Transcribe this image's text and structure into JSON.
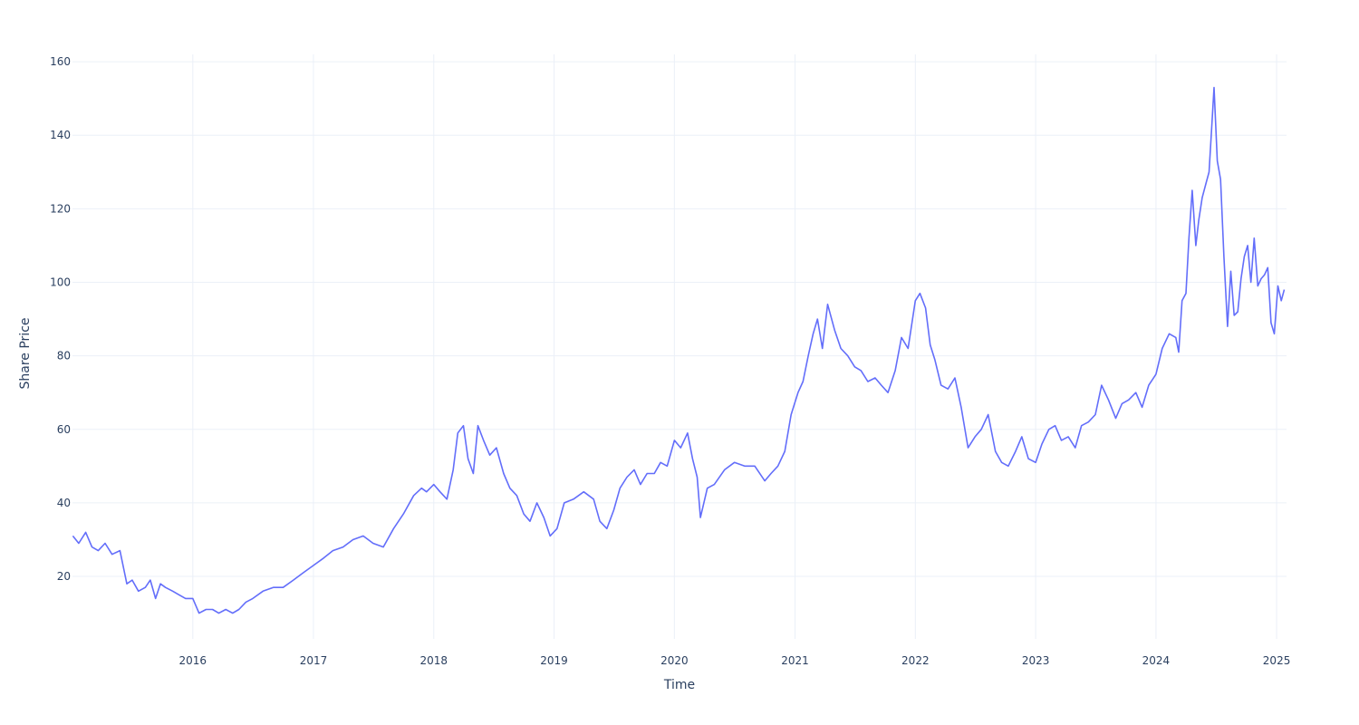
{
  "chart_data": {
    "type": "line",
    "title": "",
    "xlabel": "Time",
    "ylabel": "Share Price",
    "xlim": [
      "2015-01-01",
      "2025-01-31"
    ],
    "ylim": [
      3,
      162
    ],
    "grid": true,
    "line_color": "#636efa",
    "grid_color": "#ebf0f8",
    "text_color": "#2a3f5f",
    "x_ticks": [
      "2016",
      "2017",
      "2018",
      "2019",
      "2020",
      "2021",
      "2022",
      "2023",
      "2024",
      "2025"
    ],
    "y_ticks": [
      "20",
      "40",
      "60",
      "80",
      "100",
      "120",
      "140",
      "160"
    ],
    "series": [
      {
        "x": [
          "2015-01-02",
          "2015-01-20",
          "2015-02-10",
          "2015-03-01",
          "2015-03-20",
          "2015-04-10",
          "2015-05-01",
          "2015-05-25",
          "2015-06-15",
          "2015-07-01",
          "2015-07-20",
          "2015-08-10",
          "2015-08-25",
          "2015-09-10",
          "2015-09-25",
          "2015-10-10",
          "2015-11-01",
          "2015-11-20",
          "2015-12-10",
          "2016-01-01",
          "2016-01-20",
          "2016-02-10",
          "2016-03-01",
          "2016-03-20",
          "2016-04-10",
          "2016-05-01",
          "2016-05-20",
          "2016-06-10",
          "2016-07-01",
          "2016-08-01",
          "2016-09-01",
          "2016-10-01",
          "2016-11-01",
          "2016-12-01",
          "2017-01-01",
          "2017-02-01",
          "2017-03-01",
          "2017-04-01",
          "2017-05-01",
          "2017-06-01",
          "2017-07-01",
          "2017-08-01",
          "2017-09-01",
          "2017-10-01",
          "2017-11-01",
          "2017-11-25",
          "2017-12-10",
          "2018-01-01",
          "2018-01-20",
          "2018-02-10",
          "2018-03-01",
          "2018-03-15",
          "2018-04-01",
          "2018-04-15",
          "2018-05-01",
          "2018-05-15",
          "2018-06-01",
          "2018-06-20",
          "2018-07-10",
          "2018-08-01",
          "2018-08-20",
          "2018-09-10",
          "2018-10-01",
          "2018-10-20",
          "2018-11-10",
          "2018-12-01",
          "2018-12-20",
          "2019-01-10",
          "2019-02-01",
          "2019-03-01",
          "2019-04-01",
          "2019-05-01",
          "2019-05-20",
          "2019-06-10",
          "2019-07-01",
          "2019-07-20",
          "2019-08-10",
          "2019-09-01",
          "2019-09-20",
          "2019-10-10",
          "2019-11-01",
          "2019-11-20",
          "2019-12-10",
          "2020-01-01",
          "2020-01-20",
          "2020-02-10",
          "2020-02-25",
          "2020-03-10",
          "2020-03-20",
          "2020-04-10",
          "2020-05-01",
          "2020-06-01",
          "2020-07-01",
          "2020-08-01",
          "2020-09-01",
          "2020-10-01",
          "2020-10-20",
          "2020-11-10",
          "2020-12-01",
          "2020-12-20",
          "2021-01-10",
          "2021-01-25",
          "2021-02-10",
          "2021-02-25",
          "2021-03-10",
          "2021-03-25",
          "2021-04-10",
          "2021-05-01",
          "2021-05-20",
          "2021-06-10",
          "2021-07-01",
          "2021-07-20",
          "2021-08-10",
          "2021-09-01",
          "2021-09-20",
          "2021-10-10",
          "2021-11-01",
          "2021-11-20",
          "2021-12-10",
          "2022-01-01",
          "2022-01-15",
          "2022-02-01",
          "2022-02-15",
          "2022-03-01",
          "2022-03-20",
          "2022-04-10",
          "2022-05-01",
          "2022-05-20",
          "2022-06-10",
          "2022-07-01",
          "2022-07-20",
          "2022-08-10",
          "2022-09-01",
          "2022-09-20",
          "2022-10-10",
          "2022-11-01",
          "2022-11-20",
          "2022-12-10",
          "2023-01-01",
          "2023-01-20",
          "2023-02-10",
          "2023-03-01",
          "2023-03-20",
          "2023-04-10",
          "2023-05-01",
          "2023-05-20",
          "2023-06-10",
          "2023-07-01",
          "2023-07-20",
          "2023-08-10",
          "2023-09-01",
          "2023-09-20",
          "2023-10-10",
          "2023-11-01",
          "2023-11-20",
          "2023-12-10",
          "2024-01-01",
          "2024-01-20",
          "2024-02-10",
          "2024-03-01",
          "2024-03-10",
          "2024-03-20",
          "2024-04-01",
          "2024-04-10",
          "2024-04-20",
          "2024-05-01",
          "2024-05-10",
          "2024-05-20",
          "2024-06-01",
          "2024-06-10",
          "2024-06-18",
          "2024-06-25",
          "2024-07-05",
          "2024-07-15",
          "2024-07-25",
          "2024-08-05",
          "2024-08-15",
          "2024-08-25",
          "2024-09-05",
          "2024-09-15",
          "2024-09-25",
          "2024-10-05",
          "2024-10-15",
          "2024-10-25",
          "2024-11-05",
          "2024-11-15",
          "2024-11-25",
          "2024-12-05",
          "2024-12-15",
          "2024-12-25",
          "2025-01-05",
          "2025-01-15",
          "2025-01-24"
        ],
        "y": [
          31,
          29,
          32,
          28,
          27,
          29,
          26,
          27,
          18,
          19,
          16,
          17,
          19,
          14,
          18,
          17,
          16,
          15,
          14,
          14,
          10,
          11,
          11,
          10,
          11,
          10,
          11,
          13,
          14,
          16,
          17,
          17,
          19,
          21,
          23,
          25,
          27,
          28,
          30,
          31,
          29,
          28,
          33,
          37,
          42,
          44,
          43,
          45,
          43,
          41,
          49,
          59,
          61,
          52,
          48,
          61,
          57,
          53,
          55,
          48,
          44,
          42,
          37,
          35,
          40,
          36,
          31,
          33,
          40,
          41,
          43,
          41,
          35,
          33,
          38,
          44,
          47,
          49,
          45,
          48,
          48,
          51,
          50,
          57,
          55,
          59,
          52,
          47,
          36,
          44,
          45,
          49,
          51,
          50,
          50,
          46,
          48,
          50,
          54,
          64,
          70,
          73,
          80,
          86,
          90,
          82,
          94,
          87,
          82,
          80,
          77,
          76,
          73,
          74,
          72,
          70,
          76,
          85,
          82,
          95,
          97,
          93,
          83,
          79,
          72,
          71,
          74,
          66,
          55,
          58,
          60,
          64,
          54,
          51,
          50,
          54,
          58,
          52,
          51,
          56,
          60,
          61,
          57,
          58,
          55,
          61,
          62,
          64,
          72,
          68,
          63,
          67,
          68,
          70,
          66,
          72,
          75,
          82,
          86,
          85,
          81,
          95,
          97,
          112,
          125,
          110,
          117,
          123,
          127,
          130,
          142,
          153,
          133,
          128,
          107,
          88,
          103,
          91,
          92,
          101,
          107,
          110,
          100,
          112,
          99,
          101,
          102,
          104,
          89,
          86,
          99,
          95,
          98
        ]
      }
    ]
  }
}
